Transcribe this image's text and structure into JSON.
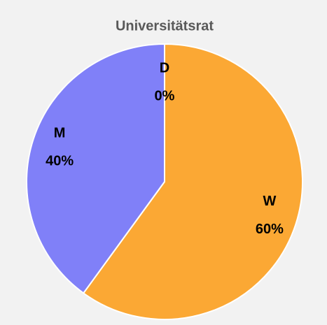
{
  "chart_data": {
    "type": "pie",
    "title": "Universitätsrat",
    "categories": [
      "D",
      "W",
      "M"
    ],
    "values": [
      0,
      60,
      40
    ],
    "value_labels": [
      "0%",
      "60%",
      "40%"
    ],
    "colors": [
      "#5b9bd5",
      "#fba834",
      "#8080f8"
    ]
  }
}
